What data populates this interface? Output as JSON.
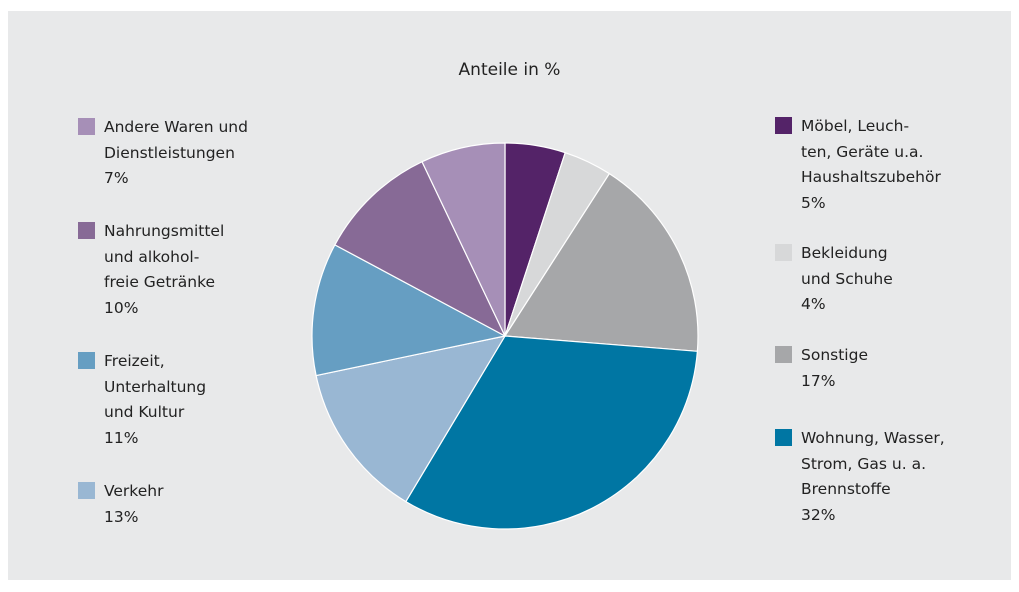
{
  "chart_data": {
    "type": "pie",
    "title": "Anteile in %",
    "slices": [
      {
        "label": "Möbel, Leuch-\nten, Geräte u.a.\nHaushaltszubehör",
        "value": 5,
        "display": "5%",
        "color": "#542368"
      },
      {
        "label": "Bekleidung\nund Schuhe",
        "value": 4,
        "display": "4%",
        "color": "#d7d8d9"
      },
      {
        "label": "Sonstige",
        "value": 17,
        "display": "17%",
        "color": "#a6a7a9"
      },
      {
        "label": "Wohnung, Wasser,\nStrom, Gas u. a.\nBrennstoffe",
        "value": 32,
        "display": "32%",
        "color": "#0076a3"
      },
      {
        "label": "Verkehr",
        "value": 13,
        "display": "13%",
        "color": "#99b7d3"
      },
      {
        "label": "Freizeit,\nUnterhaltung\nund Kultur",
        "value": 11,
        "display": "11%",
        "color": "#669ec2"
      },
      {
        "label": "Nahrungsmittel\nund alkohol-\nfreie Getränke",
        "value": 10,
        "display": "10%",
        "color": "#876a96"
      },
      {
        "label": "Andere Waren und\nDienstleistungen",
        "value": 7,
        "display": "7%",
        "color": "#a68fb7"
      }
    ]
  }
}
